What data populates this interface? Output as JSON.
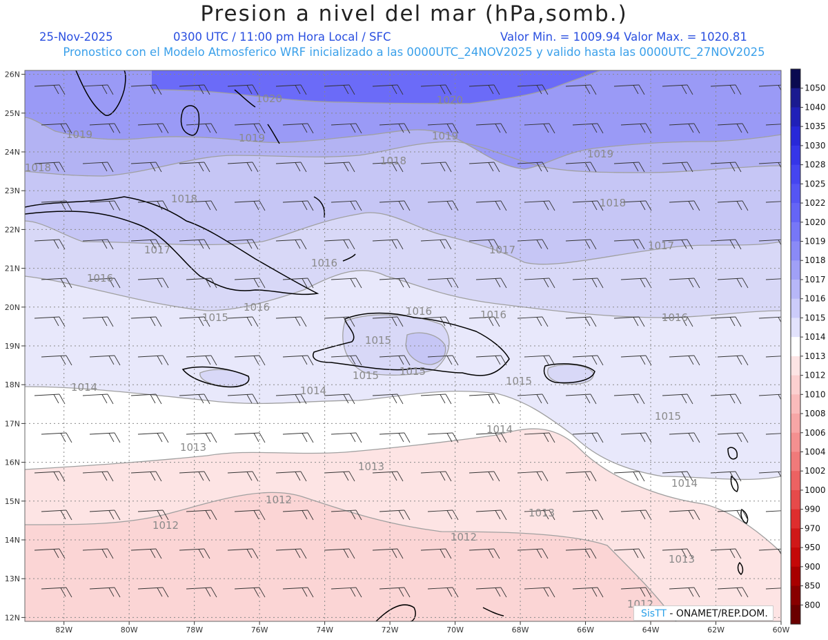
{
  "header": {
    "title": "Presion a nivel del mar (hPa,somb.)",
    "date": "25-Nov-2025",
    "time": "0300 UTC / 11:00 pm Hora Local / SFC",
    "valores": "Valor Min. = 1009.94  Valor Max. = 1020.81",
    "pronostico": "Pronostico con el Modelo Atmosferico WRF inicializado a las 0000UTC_24NOV2025 y valido hasta las  0000UTC_27NOV2025"
  },
  "map": {
    "lat_ticks": [
      "26N",
      "25N",
      "24N",
      "23N",
      "22N",
      "21N",
      "20N",
      "19N",
      "18N",
      "17N",
      "16N",
      "15N",
      "14N",
      "13N",
      "12N"
    ],
    "lon_ticks": [
      "82W",
      "80W",
      "78W",
      "76W",
      "74W",
      "72W",
      "70W",
      "68W",
      "66W",
      "64W",
      "62W",
      "60W"
    ],
    "contour_labels": [
      {
        "text": "1020"
      },
      {
        "text": "1020"
      },
      {
        "text": "1019"
      },
      {
        "text": "1019"
      },
      {
        "text": "1019"
      },
      {
        "text": "1019"
      },
      {
        "text": "1018"
      },
      {
        "text": "1018"
      },
      {
        "text": "1018"
      },
      {
        "text": "1018"
      },
      {
        "text": "1017"
      },
      {
        "text": "1017"
      },
      {
        "text": "1017"
      },
      {
        "text": "1016"
      },
      {
        "text": "1016"
      },
      {
        "text": "1016"
      },
      {
        "text": "1016"
      },
      {
        "text": "1016"
      },
      {
        "text": "1016"
      },
      {
        "text": "1015"
      },
      {
        "text": "1015"
      },
      {
        "text": "1015"
      },
      {
        "text": "1015"
      },
      {
        "text": "1015"
      },
      {
        "text": "1015"
      },
      {
        "text": "1014"
      },
      {
        "text": "1014"
      },
      {
        "text": "1014"
      },
      {
        "text": "1014"
      },
      {
        "text": "1013"
      },
      {
        "text": "1013"
      },
      {
        "text": "1013"
      },
      {
        "text": "1013"
      },
      {
        "text": "1012"
      },
      {
        "text": "1012"
      },
      {
        "text": "1012"
      },
      {
        "text": "1012"
      }
    ],
    "shading_colors": {
      "1020": "#6b6bf8",
      "1019": "#9a9af6",
      "1018": "#b3b3f3",
      "1017": "#c6c6f5",
      "1016": "#d8d8f7",
      "1015": "#e8e8fb",
      "1014": "#ffffff",
      "1013": "#fde4e4",
      "1012": "#fbd5d5"
    }
  },
  "colorbar": {
    "labels": [
      "1050",
      "1040",
      "1035",
      "1030",
      "1028",
      "1025",
      "1022",
      "1020",
      "1019",
      "1018",
      "1017",
      "1016",
      "1015",
      "1014",
      "1013",
      "1012",
      "1010",
      "1008",
      "1006",
      "1004",
      "1002",
      "1000",
      "990",
      "970",
      "950",
      "900",
      "850",
      "800"
    ],
    "colors": [
      "#0a0a50",
      "#1a1a90",
      "#2020b8",
      "#2828d8",
      "#3535e8",
      "#4545f0",
      "#5555f4",
      "#6565f6",
      "#7777f7",
      "#8a8af7",
      "#a0a0f7",
      "#b7b7f8",
      "#ccccfa",
      "#e2e2fc",
      "#ffffff",
      "#fde4e4",
      "#fcd0d0",
      "#fabbbb",
      "#f7a6a6",
      "#f49090",
      "#f07a7a",
      "#ec6262",
      "#e64a4a",
      "#de2e2e",
      "#d01818",
      "#c40808",
      "#a80000",
      "#880000",
      "#6a0000"
    ]
  },
  "credit": {
    "sis": "SisTT",
    "text": " - ONAMET/REP.DOM."
  }
}
